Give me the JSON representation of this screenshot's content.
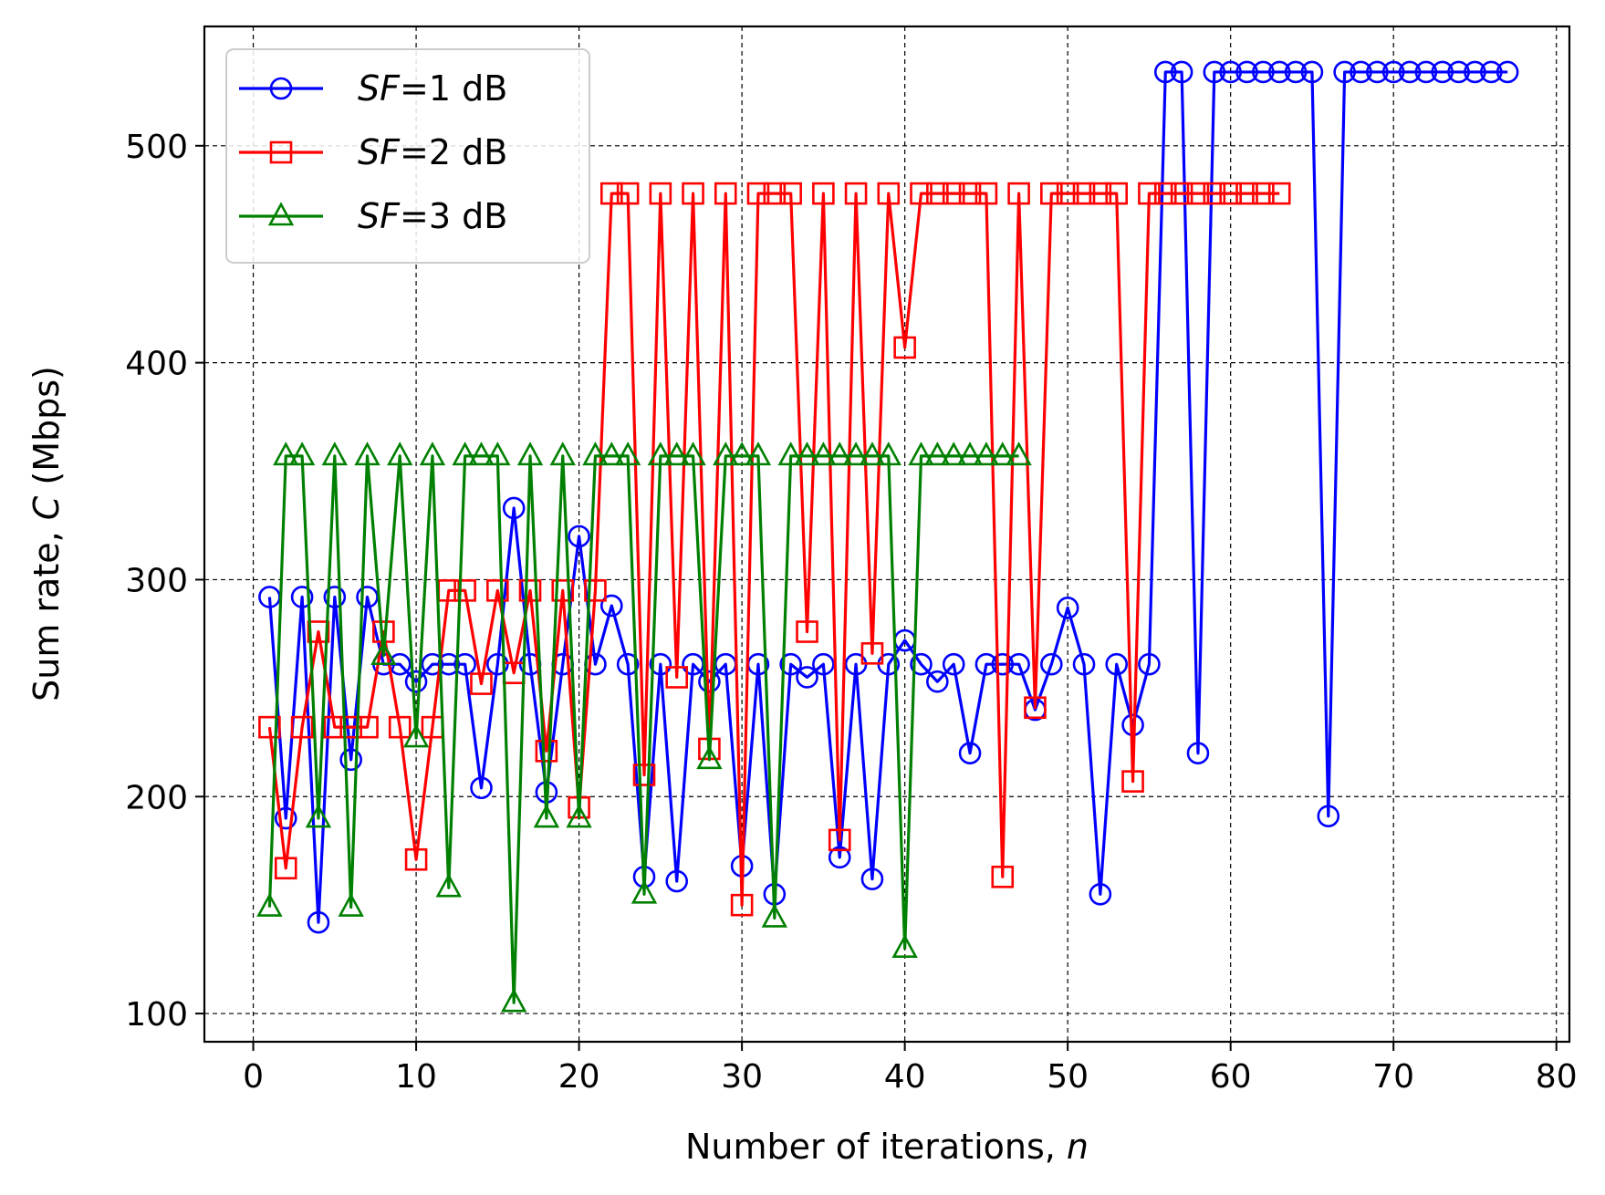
{
  "chart_data": {
    "type": "line",
    "xlabel_prefix": "Number of iterations, ",
    "xlabel_var": "n",
    "ylabel_prefix": "Sum rate, ",
    "ylabel_var": "C",
    "ylabel_suffix": " (Mbps)",
    "xlim": [
      -3,
      80.8
    ],
    "ylim": [
      87,
      555
    ],
    "xticks": [
      0,
      10,
      20,
      30,
      40,
      50,
      60,
      70,
      80
    ],
    "yticks": [
      100,
      200,
      300,
      400,
      500
    ],
    "grid": true,
    "legend_position": "upper-left",
    "series": [
      {
        "name_var": "SF",
        "name_rest": "=1 dB",
        "color": "#0000ff",
        "marker": "circle",
        "x": [
          1,
          2,
          3,
          4,
          5,
          6,
          7,
          8,
          9,
          10,
          11,
          12,
          13,
          14,
          15,
          16,
          17,
          18,
          19,
          20,
          21,
          22,
          23,
          24,
          25,
          26,
          27,
          28,
          29,
          30,
          31,
          32,
          33,
          34,
          35,
          36,
          37,
          38,
          39,
          40,
          41,
          42,
          43,
          44,
          45,
          46,
          47,
          48,
          49,
          50,
          51,
          52,
          53,
          54,
          55,
          56,
          57,
          58,
          59,
          60,
          61,
          62,
          63,
          64,
          65,
          66,
          67,
          68,
          69,
          70,
          71,
          72,
          73,
          74,
          75,
          76,
          77
        ],
        "values": [
          292,
          190,
          292,
          142,
          292,
          217,
          292,
          261,
          261,
          253,
          261,
          261,
          261,
          204,
          261,
          333,
          261,
          202,
          261,
          320,
          261,
          288,
          261,
          163,
          261,
          161,
          261,
          253,
          261,
          168,
          261,
          155,
          261,
          255,
          261,
          172,
          261,
          162,
          261,
          272,
          261,
          253,
          261,
          220,
          261,
          261,
          261,
          240,
          261,
          287,
          261,
          155,
          261,
          233,
          261,
          534,
          534,
          220,
          534,
          534,
          534,
          534,
          534,
          534,
          534,
          191,
          534,
          534,
          534,
          534,
          534,
          534,
          534,
          534,
          534,
          534,
          534
        ]
      },
      {
        "name_var": "SF",
        "name_rest": "=2 dB",
        "color": "#ff0000",
        "marker": "square",
        "x": [
          1,
          2,
          3,
          4,
          5,
          6,
          7,
          8,
          9,
          10,
          11,
          12,
          13,
          14,
          15,
          16,
          17,
          18,
          19,
          20,
          21,
          22,
          23,
          24,
          25,
          26,
          27,
          28,
          29,
          30,
          31,
          32,
          33,
          34,
          35,
          36,
          37,
          38,
          39,
          40,
          41,
          42,
          43,
          44,
          45,
          46,
          47,
          48,
          49,
          50,
          51,
          52,
          53,
          54,
          55,
          56,
          57,
          58,
          59,
          60,
          61,
          62,
          63
        ],
        "values": [
          232,
          167,
          232,
          276,
          232,
          232,
          232,
          276,
          232,
          171,
          232,
          295,
          295,
          252,
          295,
          257,
          295,
          221,
          295,
          195,
          295,
          478,
          478,
          210,
          478,
          255,
          478,
          222,
          478,
          150,
          478,
          478,
          478,
          276,
          478,
          180,
          478,
          266,
          478,
          407,
          478,
          478,
          478,
          478,
          478,
          163,
          478,
          241,
          478,
          478,
          478,
          478,
          478,
          207,
          478,
          478,
          478,
          478,
          478,
          478,
          478,
          478,
          478
        ]
      },
      {
        "name_var": "SF",
        "name_rest": "=3 dB",
        "color": "#008000",
        "marker": "triangle",
        "x": [
          1,
          2,
          3,
          4,
          5,
          6,
          7,
          8,
          9,
          10,
          11,
          12,
          13,
          14,
          15,
          16,
          17,
          18,
          19,
          20,
          21,
          22,
          23,
          24,
          25,
          26,
          27,
          28,
          29,
          30,
          31,
          32,
          33,
          34,
          35,
          36,
          37,
          38,
          39,
          40,
          41,
          42,
          43,
          44,
          45,
          46,
          47
        ],
        "values": [
          149,
          357,
          357,
          190,
          357,
          149,
          357,
          265,
          357,
          227,
          357,
          158,
          357,
          357,
          357,
          105,
          357,
          190,
          357,
          190,
          357,
          357,
          357,
          155,
          357,
          357,
          357,
          217,
          357,
          357,
          357,
          144,
          357,
          357,
          357,
          357,
          357,
          357,
          357,
          130,
          357,
          357,
          357,
          357,
          357,
          357,
          357
        ]
      }
    ]
  }
}
